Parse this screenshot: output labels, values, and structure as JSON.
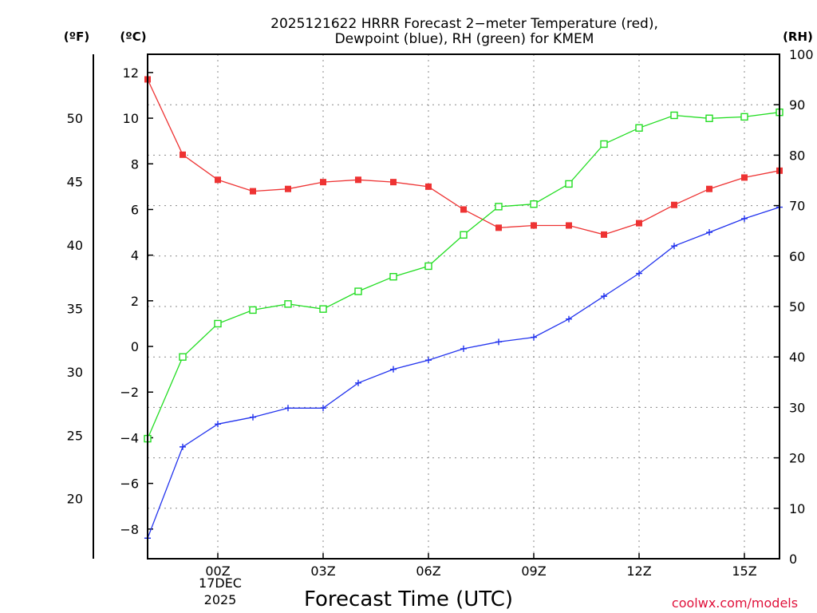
{
  "chart_data": {
    "type": "line",
    "title_line1": "2025121622 HRRR Forecast 2−meter Temperature (red),",
    "title_line2": "Dewpoint (blue), RH (green) for KMEM",
    "xlabel": "Forecast Time (UTC)",
    "credit": "coolwx.com/models",
    "units": {
      "fahrenheit": "(ºF)",
      "celsius": "(ºC)",
      "rh": "(RH)"
    },
    "x_hours": [
      22,
      23,
      24,
      25,
      26,
      27,
      28,
      29,
      30,
      31,
      32,
      33,
      34,
      35,
      36,
      37,
      38,
      39,
      40
    ],
    "x_ticks": [
      {
        "hour": 24,
        "label": "00Z"
      },
      {
        "hour": 27,
        "label": "03Z"
      },
      {
        "hour": 30,
        "label": "06Z"
      },
      {
        "hour": 33,
        "label": "09Z"
      },
      {
        "hour": 36,
        "label": "12Z"
      },
      {
        "hour": 39,
        "label": "15Z"
      }
    ],
    "date_label_line1": "17DEC",
    "date_label_line2": "2025",
    "celsius_axis": {
      "min": -9.3,
      "max": 12.8,
      "ticks": [
        12,
        10,
        8,
        6,
        4,
        2,
        0,
        -2,
        -4,
        -6,
        -8
      ],
      "tick_labels": [
        "12",
        "10",
        "8",
        "6",
        "4",
        "2",
        "0",
        "−2",
        "−4",
        "−6",
        "−8"
      ]
    },
    "fahrenheit_axis": {
      "ticks": [
        50,
        45,
        40,
        35,
        30,
        25,
        20
      ],
      "tick_labels": [
        "50",
        "45",
        "40",
        "35",
        "30",
        "25",
        "20"
      ]
    },
    "rh_axis": {
      "min": 0,
      "max": 100,
      "ticks": [
        0,
        10,
        20,
        30,
        40,
        50,
        60,
        70,
        80,
        90,
        100
      ],
      "tick_labels": [
        "0",
        "10",
        "20",
        "30",
        "40",
        "50",
        "60",
        "70",
        "80",
        "90",
        "100"
      ]
    },
    "series": [
      {
        "name": "Temperature",
        "axis": "celsius",
        "color": "#ee3333",
        "marker": "filled-square",
        "values": [
          11.7,
          8.4,
          7.3,
          6.8,
          6.9,
          7.2,
          7.3,
          7.2,
          7.0,
          6.0,
          5.2,
          5.3,
          5.3,
          4.9,
          5.4,
          6.2,
          6.9,
          7.4,
          7.7
        ]
      },
      {
        "name": "Dewpoint",
        "axis": "celsius",
        "color": "#2233ee",
        "marker": "plus",
        "values": [
          -8.4,
          -4.4,
          -3.4,
          -3.1,
          -2.7,
          -2.7,
          -1.6,
          -1.0,
          -0.6,
          -0.1,
          0.2,
          0.4,
          1.2,
          2.2,
          3.2,
          4.4,
          5.0,
          5.6,
          6.1
        ]
      },
      {
        "name": "RH",
        "axis": "rh",
        "color": "#22dd22",
        "marker": "open-square",
        "values": [
          23.8,
          40.0,
          46.6,
          49.3,
          50.5,
          49.5,
          53.0,
          55.9,
          58.0,
          64.2,
          69.8,
          70.3,
          74.3,
          82.2,
          85.4,
          87.9,
          87.3,
          87.6,
          88.5
        ]
      }
    ]
  }
}
